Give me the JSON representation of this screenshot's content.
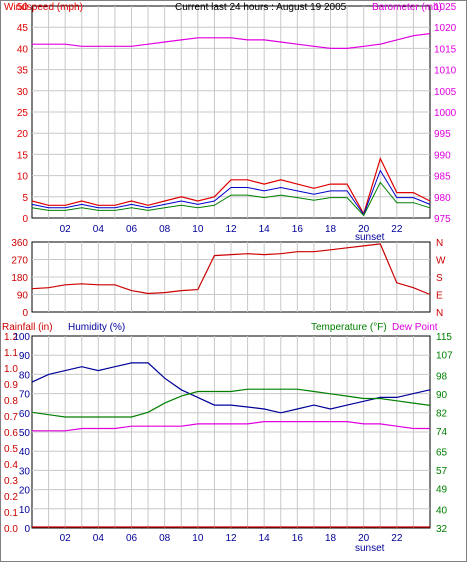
{
  "colors": {
    "windspeed": "#e00000",
    "wind_gust_blue": "#0000cc",
    "wind_avg_green": "#008000",
    "barometer": "#e000e0",
    "direction": "#cc0000",
    "humidity": "#00009a",
    "temperature": "#008000",
    "dewpoint": "#e000e0",
    "rainfall": "#cc0000",
    "grid": "#c8c8c8",
    "axis_text_dark": "#00009a"
  },
  "header": {
    "title": "Current last 24 hours : August 19 2005",
    "left_label": "Windspeed (mph)",
    "right_label": "Barometer (mb)"
  },
  "bottom_header": {
    "rainfall_label": "Rainfall (in)",
    "humidity_label": "Humidity (%)",
    "temperature_label": "Temperature (°F)",
    "dewpoint_label": "Dew Point"
  },
  "x_ticks": [
    "02",
    "04",
    "06",
    "08",
    "10",
    "12",
    "14",
    "16",
    "18",
    "20",
    "22"
  ],
  "sunset_label": "sunset",
  "chart_data": [
    {
      "type": "line",
      "panel": "wind-barometer",
      "title": "Current last 24 hours : August 19 2005",
      "xlabel": "",
      "ylabel": "Windspeed (mph)",
      "y2label": "Barometer (mb)",
      "ylim": [
        0,
        50
      ],
      "y2lim": [
        975,
        1025
      ],
      "yticks": [
        "0",
        "5",
        "10",
        "15",
        "20",
        "25",
        "30",
        "35",
        "40",
        "45",
        "50"
      ],
      "y2ticks": [
        "975",
        "980",
        "985",
        "990",
        "995",
        "1000",
        "1005",
        "1010",
        "1015",
        "1020",
        "1025"
      ],
      "x": [
        0,
        1,
        2,
        3,
        4,
        5,
        6,
        7,
        8,
        9,
        10,
        11,
        12,
        13,
        14,
        15,
        16,
        17,
        18,
        19,
        20,
        21,
        22,
        23,
        24
      ],
      "series": [
        {
          "name": "Windspeed (mph)",
          "axis": "left",
          "values": [
            4,
            3,
            3,
            4,
            3,
            3,
            4,
            3,
            4,
            5,
            4,
            5,
            9,
            9,
            8,
            9,
            8,
            7,
            8,
            8,
            1,
            14,
            6,
            6,
            4
          ]
        },
        {
          "name": "Barometer (mb)",
          "axis": "right",
          "values": [
            1016,
            1016,
            1016,
            1015.5,
            1015.5,
            1015.5,
            1015.5,
            1016,
            1016.5,
            1017,
            1017.5,
            1017.5,
            1017.5,
            1017,
            1017,
            1016.5,
            1016,
            1015.5,
            1015,
            1015,
            1015.5,
            1016,
            1017,
            1018,
            1018.5
          ]
        }
      ],
      "grid": true
    },
    {
      "type": "line",
      "panel": "wind-direction",
      "ylabel": "",
      "ylim": [
        0,
        360
      ],
      "yticks": [
        "0",
        "90",
        "180",
        "270",
        "360"
      ],
      "y2ticks": [
        "N",
        "W",
        "S",
        "E",
        "N"
      ],
      "x": [
        0,
        1,
        2,
        3,
        4,
        5,
        6,
        7,
        8,
        9,
        10,
        11,
        12,
        13,
        14,
        15,
        16,
        17,
        18,
        19,
        20,
        21,
        22,
        23,
        24
      ],
      "series": [
        {
          "name": "Wind direction",
          "values": [
            120,
            125,
            140,
            145,
            140,
            140,
            110,
            95,
            100,
            110,
            115,
            290,
            295,
            300,
            295,
            300,
            310,
            310,
            320,
            330,
            340,
            350,
            150,
            125,
            90
          ]
        }
      ],
      "grid": true
    },
    {
      "type": "line",
      "panel": "humidity-temperature",
      "ylabel": "Humidity (%)",
      "y2label": "Temperature (°F)",
      "ylim": [
        0,
        100
      ],
      "y2lim": [
        32,
        115
      ],
      "yticks_rain": [
        "0.0",
        "0.1",
        "0.2",
        "0.3",
        "0.4",
        "0.5",
        "0.6",
        "0.7",
        "0.8",
        "0.9",
        "1.0",
        "1.1",
        "1.2"
      ],
      "yticks_humidity": [
        "0",
        "10",
        "20",
        "30",
        "40",
        "50",
        "60",
        "70",
        "80",
        "90",
        "100"
      ],
      "y2ticks": [
        "32",
        "40",
        "49",
        "57",
        "65",
        "74",
        "82",
        "90",
        "98",
        "107",
        "115"
      ],
      "x": [
        0,
        1,
        2,
        3,
        4,
        5,
        6,
        7,
        8,
        9,
        10,
        11,
        12,
        13,
        14,
        15,
        16,
        17,
        18,
        19,
        20,
        21,
        22,
        23,
        24
      ],
      "series": [
        {
          "name": "Humidity (%)",
          "axis": "left",
          "values": [
            76,
            80,
            82,
            84,
            82,
            84,
            86,
            86,
            78,
            72,
            68,
            64,
            64,
            63,
            62,
            60,
            62,
            64,
            62,
            64,
            66,
            68,
            68,
            70,
            72
          ]
        },
        {
          "name": "Temperature (°F)",
          "axis": "right",
          "values": [
            82,
            81,
            80,
            80,
            80,
            80,
            80,
            82,
            86,
            89,
            91,
            91,
            91,
            92,
            92,
            92,
            92,
            91,
            90,
            89,
            88,
            88,
            87,
            86,
            85
          ]
        },
        {
          "name": "Dew Point",
          "axis": "right",
          "values": [
            74,
            74,
            74,
            75,
            75,
            75,
            76,
            76,
            76,
            76,
            77,
            77,
            77,
            77,
            78,
            78,
            78,
            78,
            78,
            78,
            77,
            77,
            76,
            75,
            75
          ]
        },
        {
          "name": "Rainfall (in)",
          "axis": "rain",
          "values": [
            0,
            0,
            0,
            0,
            0,
            0,
            0,
            0,
            0,
            0,
            0,
            0,
            0,
            0,
            0,
            0,
            0,
            0,
            0,
            0,
            0,
            0,
            0,
            0,
            0
          ]
        }
      ],
      "grid": true
    }
  ]
}
